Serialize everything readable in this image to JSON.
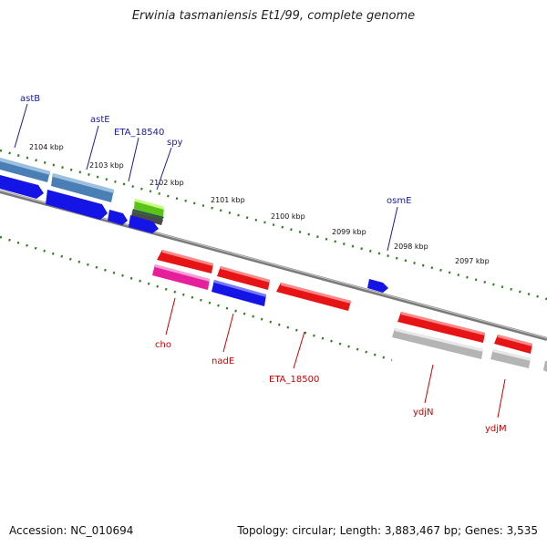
{
  "title": "Erwinia tasmaniensis Et1/99, complete genome",
  "accession_text": "Accession: NC_010694",
  "topology_text": "Topology: circular; Length: 3,883,467 bp; Genes: 3,535",
  "ticks": [
    "2104 kbp",
    "2103 kbp",
    "2102 kbp",
    "2101 kbp",
    "2100 kbp",
    "2099 kbp",
    "2098 kbp",
    "2097 kbp"
  ],
  "gene_labels_top": [
    "astB",
    "astE",
    "ETA_18540",
    "spy",
    "osmE"
  ],
  "gene_labels_bottom": [
    "cho",
    "nadE",
    "ETA_18500",
    "ydjN",
    "ydjM"
  ],
  "colors": {
    "label_top": "#1a1aa0",
    "label_bottom": "#cc0000",
    "tick_dots": "#2e7d1e",
    "backbone": "#808080",
    "blue_gene": "#1414e6",
    "steel_gene": "#4a7fb5",
    "red_gene": "#e61414",
    "pink_gene": "#e6209a",
    "gray_gene": "#b4b4b4",
    "green_gene": "#5bc21a"
  }
}
